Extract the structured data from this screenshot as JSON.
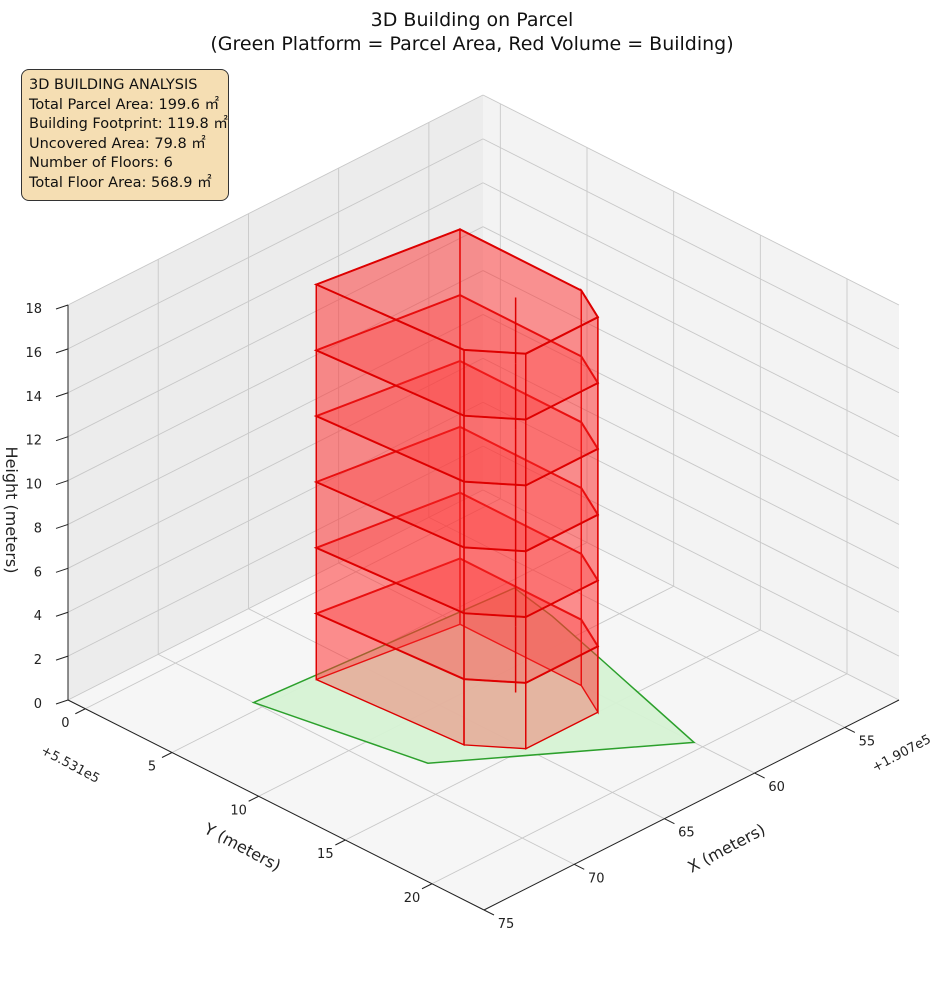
{
  "figure": {
    "title_lines": [
      "3D Building on Parcel",
      "(Green Platform = Parcel Area, Red Volume = Building)"
    ]
  },
  "info_box": {
    "heading": "3D BUILDING ANALYSIS",
    "lines": [
      "Total Parcel Area: 199.6 ㎡",
      "Building Footprint: 119.8 ㎡",
      "Uncovered Area: 79.8 ㎡",
      "Number of Floors: 6",
      "Total Floor Area: 568.9 ㎡"
    ]
  },
  "colors": {
    "parcel_fill": "#d6f2d4",
    "parcel_edge": "#2ca02c",
    "building_fill": "#ff3333",
    "building_edge": "#dd0000",
    "pane_left": "#ececec",
    "pane_right": "#f3f3f3",
    "pane_floor": "#f6f6f6",
    "grid": "#c8c8c8",
    "infobox_bg": "#f5deb3"
  },
  "chart_data": {
    "type": "3d-polygon",
    "xlabel": "X (meters)",
    "ylabel": "Y (meters)",
    "zlabel": "Height (meters)",
    "x_offset_label": "+1.907e5",
    "y_offset_label": "+5.531e5",
    "x_ticks": [
      55,
      60,
      65,
      70,
      75
    ],
    "y_ticks": [
      0,
      5,
      10,
      15,
      20
    ],
    "z_ticks": [
      0,
      2,
      4,
      6,
      8,
      10,
      12,
      14,
      16,
      18
    ],
    "xlim": [
      52,
      75
    ],
    "ylim": [
      -1,
      23
    ],
    "zlim": [
      0,
      18
    ],
    "grid": true,
    "view": {
      "elev": 20,
      "azim": 45
    },
    "parcel": {
      "name": "Parcel Area",
      "height": 0,
      "vertices": [
        [
          70,
          4.5
        ],
        [
          56.5,
          5.5
        ],
        [
          57,
          8.2
        ],
        [
          58,
          12
        ],
        [
          60,
          19.5
        ],
        [
          68.5,
          13
        ]
      ]
    },
    "building": {
      "name": "Building",
      "floors": 6,
      "floor_height": 3,
      "footprint": [
        [
          67,
          5
        ],
        [
          60,
          6
        ],
        [
          60,
          13
        ],
        [
          61,
          15
        ],
        [
          65,
          15
        ],
        [
          66.5,
          13
        ]
      ],
      "notch": {
        "from": [
          62.2,
          11.5
        ],
        "to": [
          62.8,
          12.1
        ]
      },
      "total_height": 18
    }
  }
}
